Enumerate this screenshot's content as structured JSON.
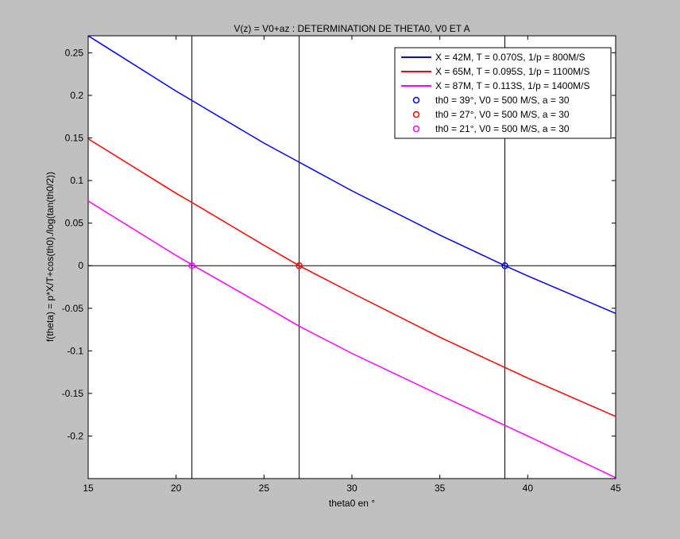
{
  "chart_data": {
    "type": "line",
    "title": "V(z) = V0+az : DETERMINATION DE THETA0, V0 ET A",
    "xlabel": "theta0 en °",
    "ylabel": "f(theta) = p*X/T+cos(th0)./log(tan(th0/2))",
    "xlim": [
      15,
      45
    ],
    "ylim": [
      -0.25,
      0.27
    ],
    "xticks": [
      15,
      20,
      25,
      30,
      35,
      40,
      45
    ],
    "yticks": [
      -0.2,
      -0.15,
      -0.1,
      -0.05,
      0,
      0.05,
      0.1,
      0.15,
      0.2,
      0.25
    ],
    "ytick_labels": [
      "-0.2",
      "-0.15",
      "-0.1",
      "-0.05",
      "0",
      "0.05",
      "0.1",
      "0.15",
      "0.2",
      "0.25"
    ],
    "grid": false,
    "legend_position": "top-right",
    "series": [
      {
        "name": "X = 42M, T = 0.070S, 1/p = 800M/S",
        "color": "#0000ff",
        "x": [
          15,
          20,
          25,
          30,
          35,
          38.7,
          40,
          45
        ],
        "y": [
          0.27,
          0.205,
          0.144,
          0.088,
          0.036,
          0.0,
          -0.012,
          -0.056
        ]
      },
      {
        "name": "X = 65M, T = 0.095S, 1/p = 1100M/S",
        "color": "#ff0000",
        "x": [
          15,
          20,
          21,
          25,
          27,
          30,
          35,
          40,
          45
        ],
        "y": [
          0.149,
          0.085,
          0.073,
          0.024,
          0.0,
          -0.032,
          -0.084,
          -0.132,
          -0.177
        ]
      },
      {
        "name": "X = 87M, T = 0.113S, 1/p = 1400M/S",
        "color": "#ff00ff",
        "x": [
          15,
          20,
          21,
          25,
          27,
          30,
          35,
          40,
          45
        ],
        "y": [
          0.076,
          0.012,
          0.0,
          -0.047,
          -0.071,
          -0.103,
          -0.152,
          -0.2,
          -0.249
        ]
      }
    ],
    "markers": [
      {
        "name": "th0 = 39°, V0 = 500 M/S, a = 30",
        "color": "#0000ff",
        "x": 38.7,
        "y": 0
      },
      {
        "name": "th0 = 27°, V0 = 500 M/S, a = 30",
        "color": "#ff0000",
        "x": 27.0,
        "y": 0
      },
      {
        "name": "th0 = 21°, V0 = 500 M/S, a = 30",
        "color": "#ff00ff",
        "x": 20.9,
        "y": 0
      }
    ],
    "vertical_lines": [
      20.9,
      27.0,
      38.7
    ],
    "horizontal_lines": [
      0
    ]
  }
}
